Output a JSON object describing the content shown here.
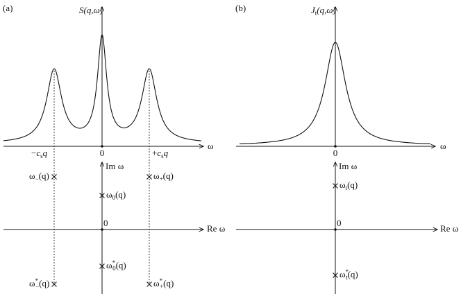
{
  "panels": [
    {
      "tag": "(a)",
      "y_axis_label": {
        "main": "S",
        "rest": "(q,ω)"
      },
      "x_axis_label": "ω",
      "x_ticks": [
        {
          "pre": "−",
          "main": "c",
          "sub": "s",
          "rest": "q"
        },
        "0",
        {
          "pre": "+",
          "main": "c",
          "sub": "s",
          "rest": "q"
        }
      ],
      "plane": {
        "im_label": "Im ω",
        "re_label": "Re ω",
        "origin": "0",
        "poles": [
          {
            "main": "ω",
            "sub": "−",
            "rest": "(q)"
          },
          {
            "main": "ω",
            "sub": "+",
            "rest": "(q)"
          },
          {
            "main": "ω",
            "sub": "0",
            "rest": "(q)"
          },
          {
            "main": "ω",
            "sup": "*",
            "sub": "0",
            "rest": "(q)"
          },
          {
            "main": "ω",
            "sup": "*",
            "sub": "−",
            "rest": "(q)"
          },
          {
            "main": "ω",
            "sup": "*",
            "sub": "+",
            "rest": "(q)"
          }
        ]
      }
    },
    {
      "tag": "(b)",
      "y_axis_label": {
        "main": "J",
        "sub": "t",
        "rest": "(q,ω)"
      },
      "x_axis_label": "ω",
      "x_ticks": [
        "0"
      ],
      "plane": {
        "im_label": "Im ω",
        "re_label": "Re ω",
        "origin": "0",
        "poles": [
          {
            "main": "ω",
            "sub": "t",
            "rest": "(q)"
          },
          {
            "main": "ω",
            "sup": "*",
            "sub": "t",
            "rest": "(q)"
          }
        ]
      }
    }
  ]
}
